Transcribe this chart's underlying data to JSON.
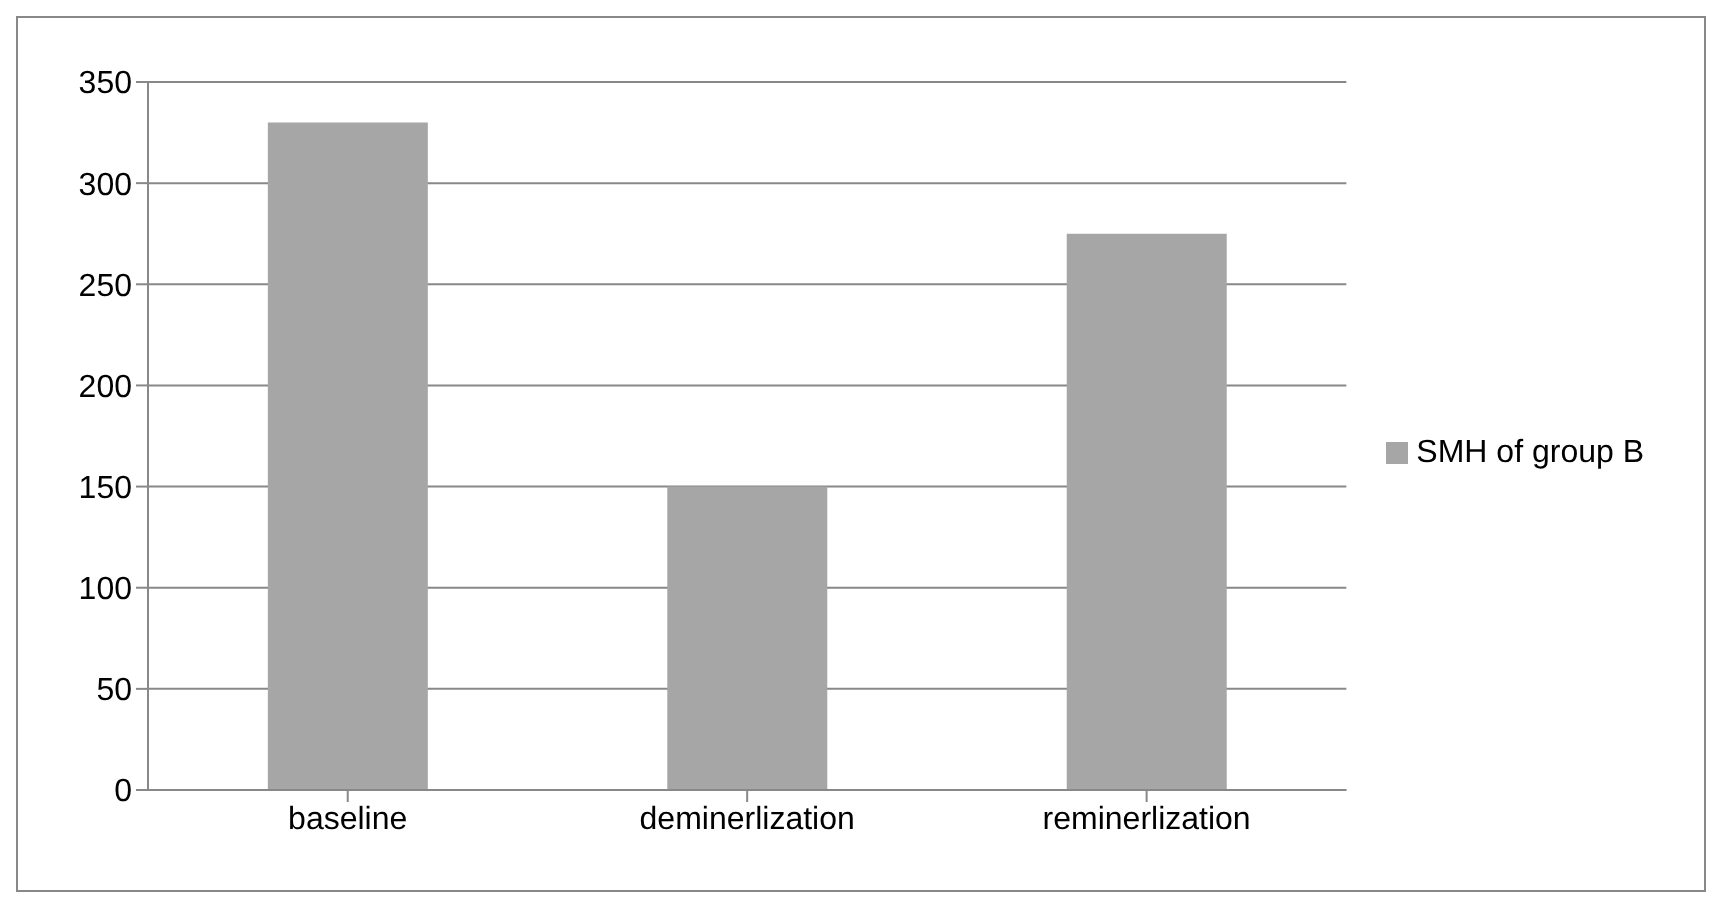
{
  "chart_data": {
    "type": "bar",
    "categories": [
      "baseline",
      "deminerlization",
      "reminerlization"
    ],
    "series": [
      {
        "name": "SMH of group B",
        "color": "#a6a6a6",
        "values": [
          330,
          150,
          275
        ]
      }
    ],
    "ylim": [
      0,
      350
    ],
    "yticks": [
      0,
      50,
      100,
      150,
      200,
      250,
      300,
      350
    ],
    "grid": "y",
    "legend": "right"
  }
}
